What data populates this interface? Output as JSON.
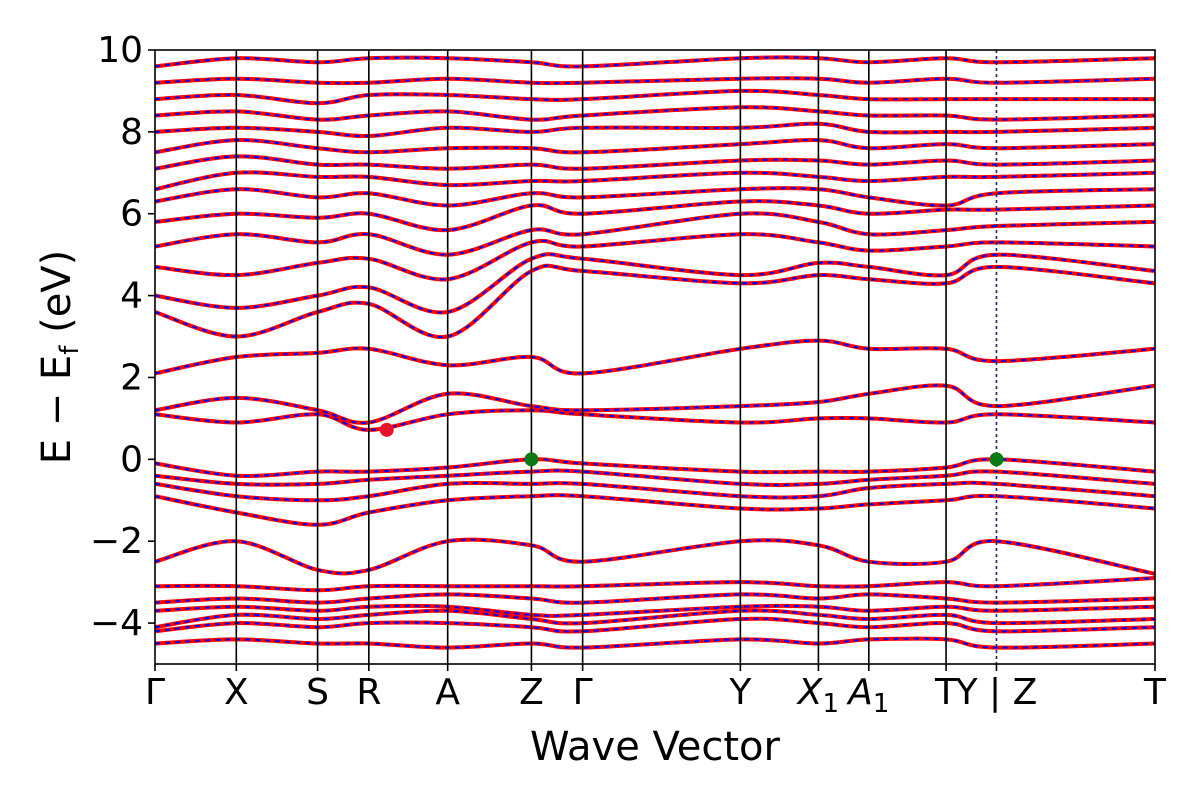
{
  "chart_data": {
    "type": "line",
    "xlabel": "Wave Vector",
    "ylabel": "E − E",
    "ylabel_sub": "f",
    "ylabel_unit": " (eV)",
    "ylim": [
      -5,
      10
    ],
    "yticks": [
      -4,
      -2,
      0,
      2,
      4,
      6,
      8,
      10
    ],
    "ytick_labels": [
      "−4",
      "−2",
      "0",
      "2",
      "4",
      "6",
      "8",
      "10"
    ],
    "kpath_ticks": [
      {
        "label": "Γ",
        "x": 0.0
      },
      {
        "label": "X",
        "x": 1.0
      },
      {
        "label": "S",
        "x": 2.0
      },
      {
        "label": "R",
        "x": 2.63
      },
      {
        "label": "A",
        "x": 3.6
      },
      {
        "label": "Z",
        "x": 4.63
      },
      {
        "label": "Γ",
        "x": 5.26
      },
      {
        "label": "Y",
        "x": 7.2
      },
      {
        "label": "X",
        "sub": "1",
        "x": 8.16
      },
      {
        "label": "A",
        "sub": "1",
        "x": 8.78
      },
      {
        "label": "T",
        "x": 9.73
      },
      {
        "label": "Y | Z",
        "x": 10.35
      },
      {
        "label": "T",
        "x": 12.3
      }
    ],
    "markers": [
      {
        "name": "CBM",
        "x": 2.85,
        "y": 0.72,
        "color": "#e8132b"
      },
      {
        "name": "VBM",
        "x": 4.63,
        "y": 0.0,
        "color": "#0a7a12"
      },
      {
        "name": "VBM",
        "x": 10.35,
        "y": 0.0,
        "color": "#0a7a12"
      }
    ],
    "series": [
      {
        "style": "spin-up solid",
        "color": "#ff0000"
      },
      {
        "style": "spin-down dashed",
        "color": "#0000ff"
      }
    ],
    "bands": [
      [
        -4.5,
        -4.4,
        -4.5,
        -4.5,
        -4.6,
        -4.5,
        -4.6,
        -4.4,
        -4.5,
        -4.4,
        -4.4,
        -4.6,
        -4.5
      ],
      [
        -4.2,
        -4.0,
        -4.1,
        -4.0,
        -4.0,
        -4.1,
        -4.2,
        -3.9,
        -4.0,
        -4.1,
        -4.0,
        -4.2,
        -4.1
      ],
      [
        -4.1,
        -3.8,
        -3.9,
        -3.8,
        -3.7,
        -3.9,
        -4.0,
        -3.7,
        -3.8,
        -3.9,
        -3.8,
        -4.0,
        -3.9
      ],
      [
        -3.7,
        -3.6,
        -3.7,
        -3.6,
        -3.6,
        -3.8,
        -3.8,
        -3.6,
        -3.6,
        -3.7,
        -3.6,
        -3.7,
        -3.6
      ],
      [
        -3.5,
        -3.4,
        -3.5,
        -3.4,
        -3.3,
        -3.4,
        -3.5,
        -3.3,
        -3.4,
        -3.3,
        -3.4,
        -3.5,
        -3.4
      ],
      [
        -3.1,
        -3.1,
        -3.2,
        -3.1,
        -3.1,
        -3.1,
        -3.1,
        -3.0,
        -3.1,
        -3.1,
        -3.0,
        -3.1,
        -2.9
      ],
      [
        -2.5,
        -2.0,
        -2.7,
        -2.7,
        -2.0,
        -2.1,
        -2.5,
        -2.0,
        -2.1,
        -2.5,
        -2.5,
        -2.0,
        -2.8
      ],
      [
        -0.9,
        -1.3,
        -1.6,
        -1.3,
        -1.0,
        -0.9,
        -0.9,
        -1.2,
        -1.2,
        -1.1,
        -1.0,
        -0.9,
        -1.2
      ],
      [
        -0.6,
        -0.9,
        -1.0,
        -0.9,
        -0.6,
        -0.6,
        -0.6,
        -0.9,
        -0.9,
        -0.7,
        -0.6,
        -0.6,
        -0.9
      ],
      [
        -0.4,
        -0.6,
        -0.6,
        -0.5,
        -0.4,
        -0.3,
        -0.3,
        -0.6,
        -0.6,
        -0.5,
        -0.4,
        -0.3,
        -0.6
      ],
      [
        -0.1,
        -0.4,
        -0.3,
        -0.3,
        -0.2,
        0.0,
        -0.1,
        -0.3,
        -0.3,
        -0.3,
        -0.2,
        0.0,
        -0.3
      ],
      [
        1.1,
        0.9,
        1.1,
        0.72,
        1.1,
        1.2,
        1.1,
        0.9,
        1.0,
        1.0,
        0.9,
        1.1,
        0.9
      ],
      [
        1.2,
        1.5,
        1.2,
        0.9,
        1.6,
        1.3,
        1.2,
        1.3,
        1.4,
        1.6,
        1.8,
        1.3,
        1.8
      ],
      [
        2.1,
        2.5,
        2.6,
        2.7,
        2.3,
        2.5,
        2.1,
        2.7,
        2.9,
        2.7,
        2.7,
        2.4,
        2.7
      ],
      [
        3.6,
        3.0,
        3.6,
        3.8,
        3.0,
        4.6,
        4.6,
        4.3,
        4.5,
        4.4,
        4.3,
        4.7,
        4.3
      ],
      [
        4.0,
        3.7,
        4.0,
        4.2,
        3.6,
        4.9,
        4.9,
        4.5,
        4.8,
        4.7,
        4.5,
        5.0,
        4.6
      ],
      [
        4.7,
        4.5,
        4.8,
        4.9,
        4.4,
        5.3,
        5.2,
        5.5,
        5.3,
        5.1,
        5.2,
        5.3,
        5.2
      ],
      [
        5.2,
        5.5,
        5.3,
        5.5,
        5.0,
        5.6,
        5.5,
        6.0,
        5.8,
        5.5,
        5.6,
        5.7,
        5.8
      ],
      [
        5.8,
        6.0,
        5.9,
        6.0,
        5.6,
        6.2,
        6.0,
        6.3,
        6.2,
        6.0,
        6.1,
        6.1,
        6.2
      ],
      [
        6.3,
        6.6,
        6.4,
        6.5,
        6.2,
        6.5,
        6.4,
        6.6,
        6.6,
        6.4,
        6.2,
        6.5,
        6.6
      ],
      [
        6.6,
        7.0,
        6.9,
        6.9,
        6.7,
        6.8,
        6.8,
        7.0,
        6.9,
        6.8,
        6.9,
        6.9,
        7.0
      ],
      [
        7.1,
        7.4,
        7.2,
        7.2,
        7.1,
        7.2,
        7.1,
        7.3,
        7.3,
        7.2,
        7.3,
        7.2,
        7.3
      ],
      [
        7.5,
        7.8,
        7.6,
        7.5,
        7.6,
        7.6,
        7.5,
        7.7,
        7.8,
        7.6,
        7.7,
        7.6,
        7.7
      ],
      [
        8.0,
        8.1,
        8.0,
        7.9,
        8.1,
        8.0,
        8.1,
        8.1,
        8.2,
        8.0,
        8.0,
        8.0,
        8.1
      ],
      [
        8.4,
        8.5,
        8.3,
        8.4,
        8.5,
        8.3,
        8.4,
        8.6,
        8.5,
        8.4,
        8.4,
        8.3,
        8.4
      ],
      [
        8.8,
        8.9,
        8.7,
        8.9,
        8.9,
        8.8,
        8.8,
        9.0,
        8.9,
        8.8,
        8.8,
        8.8,
        8.8
      ],
      [
        9.2,
        9.3,
        9.2,
        9.2,
        9.3,
        9.2,
        9.2,
        9.3,
        9.3,
        9.2,
        9.3,
        9.2,
        9.3
      ],
      [
        9.6,
        9.8,
        9.7,
        9.8,
        9.8,
        9.7,
        9.6,
        9.8,
        9.8,
        9.7,
        9.8,
        9.7,
        9.8
      ]
    ]
  }
}
